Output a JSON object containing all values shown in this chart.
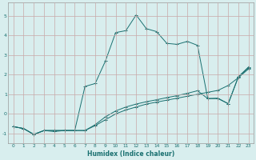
{
  "xlabel": "Humidex (Indice chaleur)",
  "xlim": [
    -0.5,
    23.5
  ],
  "ylim": [
    -1.5,
    5.7
  ],
  "xticks": [
    0,
    1,
    2,
    3,
    4,
    5,
    6,
    7,
    8,
    9,
    10,
    11,
    12,
    13,
    14,
    15,
    16,
    17,
    18,
    19,
    20,
    21,
    22,
    23
  ],
  "yticks": [
    -1,
    0,
    1,
    2,
    3,
    4,
    5
  ],
  "bg_color": "#d8eeee",
  "grid_color": "#c8a8a8",
  "line_color": "#1a7070",
  "line1_x": [
    0,
    1,
    2,
    3,
    4,
    5,
    6,
    7,
    8,
    9,
    10,
    11,
    12,
    13,
    14,
    15,
    16,
    17,
    18,
    19,
    20,
    21,
    22,
    23
  ],
  "line1_y": [
    -0.65,
    -0.75,
    -1.05,
    -0.85,
    -0.85,
    -0.85,
    -0.85,
    -0.85,
    -0.6,
    -0.3,
    0.0,
    0.2,
    0.35,
    0.5,
    0.6,
    0.7,
    0.8,
    0.9,
    1.0,
    1.1,
    1.2,
    1.45,
    1.85,
    2.3
  ],
  "line2_x": [
    0,
    1,
    2,
    3,
    4,
    5,
    6,
    7,
    8,
    9,
    10,
    11,
    12,
    13,
    14,
    15,
    16,
    17,
    18,
    19,
    20,
    21,
    22,
    23
  ],
  "line2_y": [
    -0.65,
    -0.75,
    -1.05,
    -0.85,
    -0.85,
    -0.85,
    -0.85,
    -0.85,
    -0.55,
    -0.15,
    0.15,
    0.35,
    0.5,
    0.62,
    0.72,
    0.83,
    0.93,
    1.05,
    1.18,
    0.78,
    0.78,
    0.52,
    1.9,
    2.35
  ],
  "line3_x": [
    0,
    1,
    2,
    3,
    4,
    5,
    6,
    7,
    8,
    9,
    10,
    11,
    12,
    13,
    14,
    15,
    16,
    17,
    18,
    19,
    20,
    21,
    22,
    23
  ],
  "line3_y": [
    -0.65,
    -0.75,
    -1.05,
    -0.85,
    -0.9,
    -0.85,
    -0.85,
    1.4,
    1.55,
    2.7,
    4.15,
    4.25,
    5.05,
    4.35,
    4.2,
    3.6,
    3.55,
    3.7,
    3.5,
    0.78,
    0.8,
    0.52,
    1.9,
    2.4
  ]
}
